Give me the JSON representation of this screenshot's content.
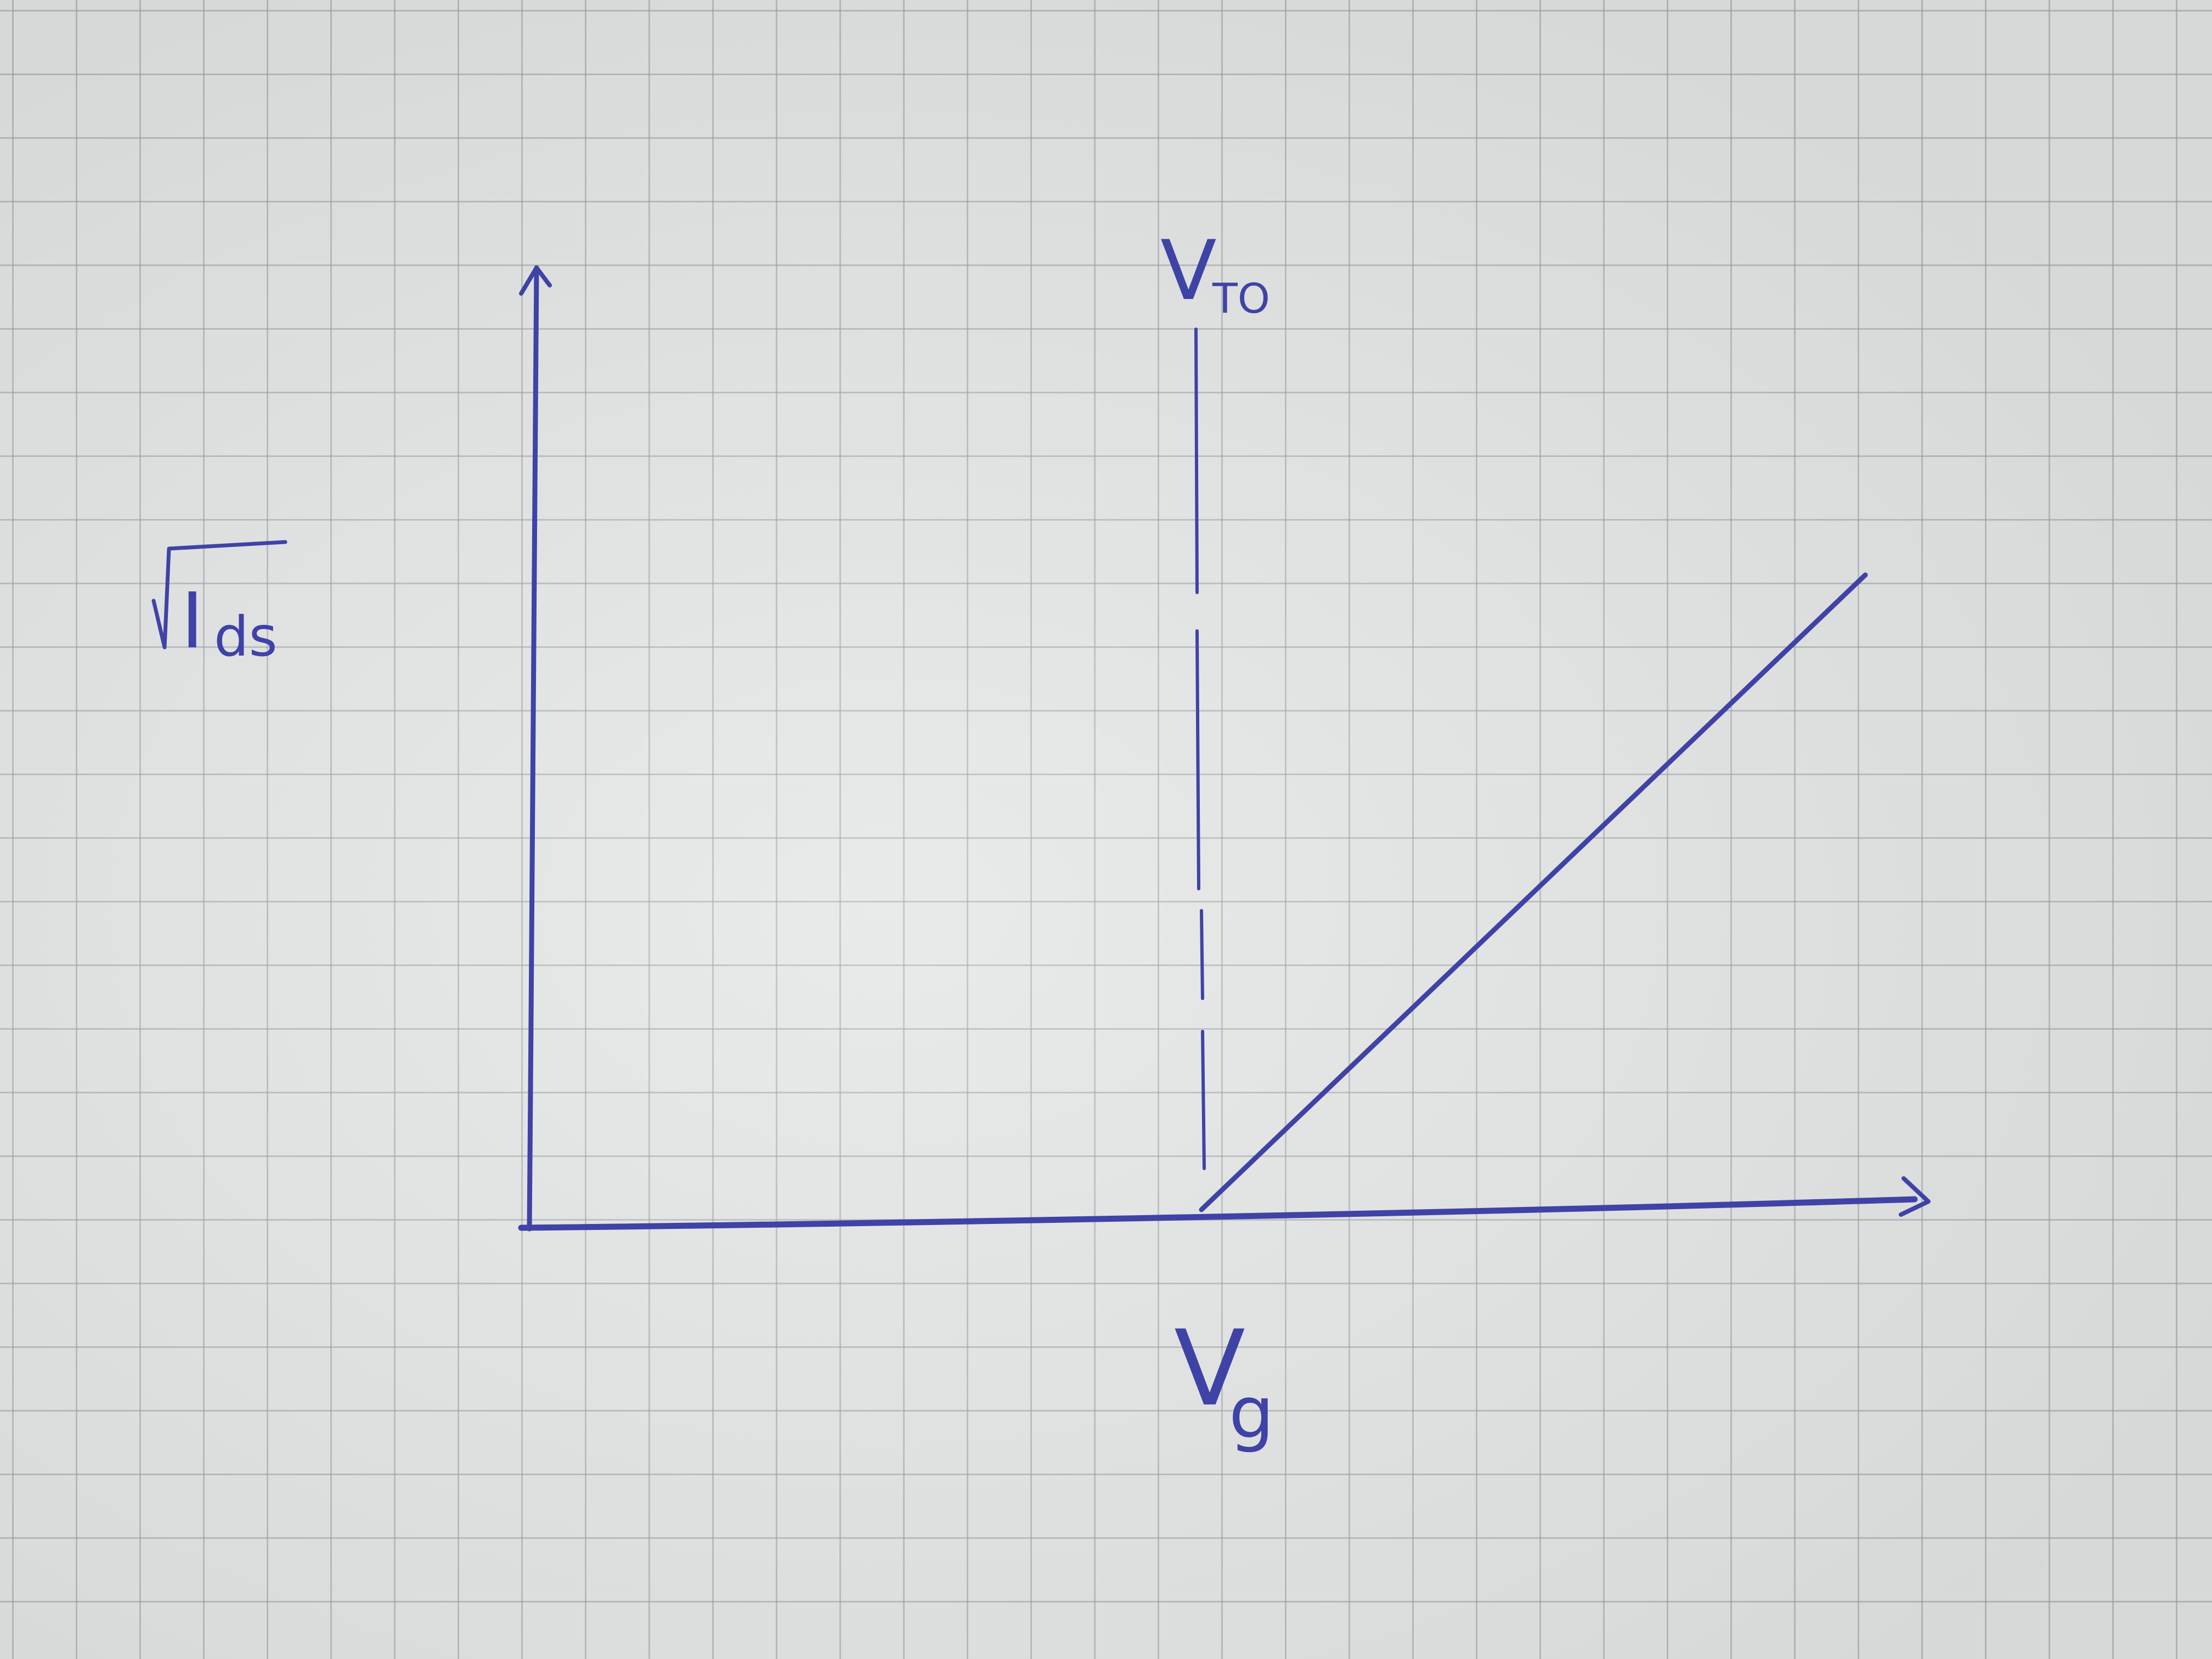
{
  "diagram": {
    "y_axis_label": "√I",
    "y_axis_label_subscript": "ds",
    "x_axis_label": "V",
    "x_axis_label_subscript": "g",
    "threshold_label": "V",
    "threshold_label_subscript": "TO",
    "ink_color": "#3f43a6",
    "paper_color": "#e4e6e6",
    "grid_color": "#969ca0"
  }
}
